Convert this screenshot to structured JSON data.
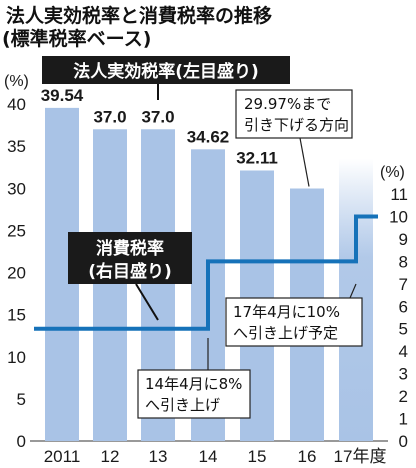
{
  "title_lines": [
    "法人実効税率と消費税率の推移",
    "(標準税率ベース)"
  ],
  "left_unit": "(%)",
  "right_unit": "(%)",
  "series_labels": {
    "corporate": "法人実効税率(左目盛り)",
    "consumption": [
      "消費税率",
      "(右目盛り)"
    ]
  },
  "annotations": {
    "target": [
      "29.97%まで",
      "引き下げる方向"
    ],
    "hike_2014": [
      "14年4月に8%",
      "へ引き上げ"
    ],
    "hike_2017": [
      "17年4月に10%",
      "へ引き上げ予定"
    ]
  },
  "colors": {
    "bar": "#a9c3e6",
    "line": "#1672b9",
    "dark_box": "#1a1a1a",
    "grid": "#c6d6ec"
  },
  "chart_data": {
    "type": "bar",
    "categories": [
      "2011",
      "12",
      "13",
      "14",
      "15",
      "16",
      "17年度"
    ],
    "series": [
      {
        "values": [
          39.54,
          37.0,
          37.0,
          34.62,
          32.11,
          29.97,
          null
        ],
        "labels": [
          "39.54",
          "37.0",
          "37.0",
          "34.62",
          "32.11",
          "",
          ""
        ],
        "axis": "left"
      },
      {
        "type": "step-line",
        "values": [
          5,
          5,
          5,
          8,
          8,
          8,
          10
        ],
        "step_points": [
          [
            2011,
            5
          ],
          [
            2014,
            5
          ],
          [
            2014,
            8
          ],
          [
            2017,
            8
          ],
          [
            2017,
            10
          ]
        ],
        "axis": "right"
      }
    ],
    "y_left": {
      "min": 0,
      "max": 40,
      "ticks": [
        0,
        5,
        10,
        15,
        20,
        25,
        30,
        35,
        40
      ]
    },
    "y_right": {
      "min": 0,
      "max": 11,
      "ticks": [
        0,
        1,
        2,
        3,
        4,
        5,
        6,
        7,
        8,
        9,
        10,
        11
      ]
    },
    "projected_category": "17年度",
    "grid": false,
    "legend": "none"
  }
}
